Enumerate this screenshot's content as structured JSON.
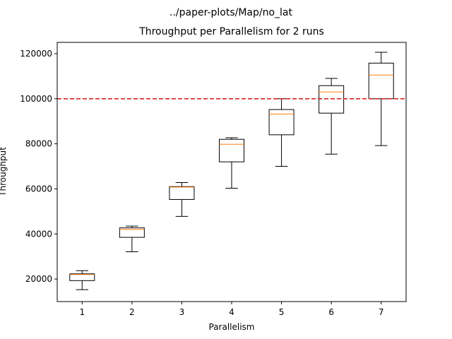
{
  "figure": {
    "suptitle": "../paper-plots/Map/no_lat"
  },
  "chart_data": {
    "type": "box",
    "title": "Throughput per Parallelism for 2 runs",
    "xlabel": "Parallelism",
    "ylabel": "Throughput",
    "categories": [
      "1",
      "2",
      "3",
      "4",
      "5",
      "6",
      "7"
    ],
    "boxes": [
      {
        "whisker_low": 15300,
        "q1": 19300,
        "median": 22000,
        "q3": 22300,
        "whisker_high": 23700
      },
      {
        "whisker_low": 32100,
        "q1": 38500,
        "median": 42000,
        "q3": 42700,
        "whisker_high": 43500
      },
      {
        "whisker_low": 47800,
        "q1": 55300,
        "median": 60800,
        "q3": 61000,
        "whisker_high": 62800
      },
      {
        "whisker_low": 60300,
        "q1": 72000,
        "median": 79800,
        "q3": 82000,
        "whisker_high": 82700
      },
      {
        "whisker_low": 70000,
        "q1": 84000,
        "median": 93200,
        "q3": 95200,
        "whisker_high": 100000
      },
      {
        "whisker_low": 75400,
        "q1": 93600,
        "median": 103000,
        "q3": 105800,
        "whisker_high": 109000
      },
      {
        "whisker_low": 79200,
        "q1": 100000,
        "median": 110500,
        "q3": 115800,
        "whisker_high": 120600
      }
    ],
    "reference_line": {
      "y": 100000,
      "color": "#d62728",
      "style": "dashed"
    },
    "ylim": [
      10000,
      125000
    ],
    "yticks": [
      20000,
      40000,
      60000,
      80000,
      100000,
      120000
    ],
    "ytick_labels": [
      "20000",
      "40000",
      "60000",
      "80000",
      "100000",
      "120000"
    ],
    "grid": false,
    "colors": {
      "box": "#000000",
      "median": "#ff7f0e",
      "reference": "#d62728"
    }
  }
}
